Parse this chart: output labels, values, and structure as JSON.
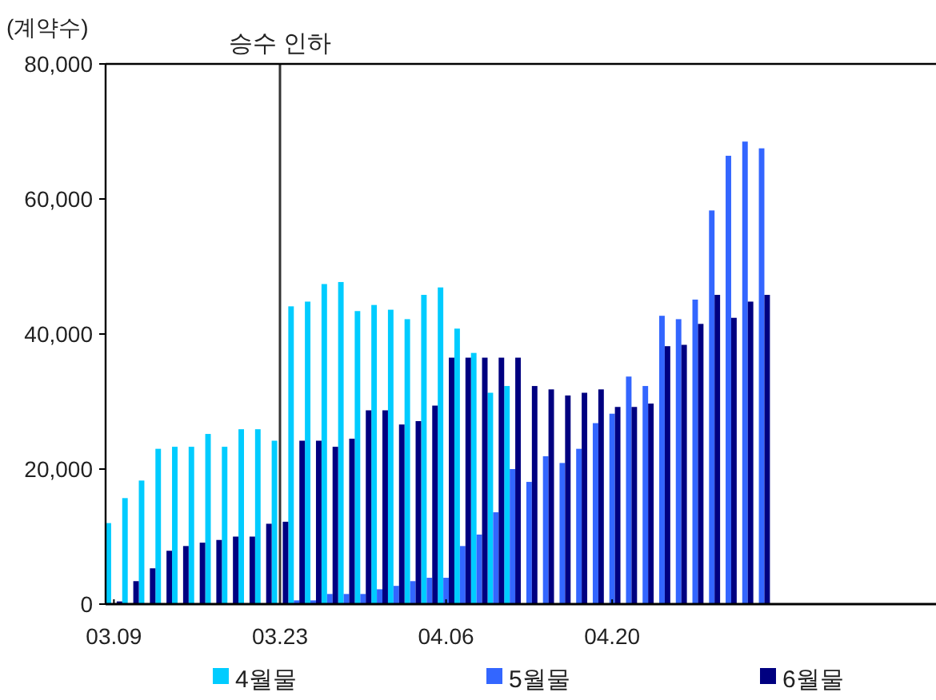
{
  "chart_data": {
    "type": "bar",
    "ylabel": "(계약수)",
    "categories": [
      "03.09",
      null,
      null,
      null,
      null,
      null,
      null,
      null,
      null,
      null,
      "03.23",
      null,
      null,
      null,
      null,
      null,
      null,
      null,
      null,
      null,
      "04.06",
      null,
      null,
      null,
      null,
      null,
      null,
      null,
      null,
      null,
      "04.20",
      null,
      null,
      null,
      null,
      null,
      null,
      null,
      null,
      null,
      null,
      null,
      null,
      null,
      null,
      null,
      null,
      null,
      null,
      null
    ],
    "series": [
      {
        "name": "4월물",
        "color": "#00ccff",
        "values": [
          12000,
          15700,
          18300,
          23000,
          23300,
          23300,
          25200,
          23300,
          25900,
          25900,
          24200,
          44100,
          44800,
          47400,
          47700,
          43400,
          44300,
          43600,
          42200,
          45800,
          46900,
          40800,
          37200,
          31300,
          32300,
          null,
          null,
          null,
          null,
          null,
          null,
          null,
          null,
          null,
          null,
          null,
          null,
          null,
          null,
          null,
          null,
          null,
          null,
          null,
          null,
          null,
          null,
          null,
          null,
          null
        ]
      },
      {
        "name": "5월물",
        "color": "#3366ff",
        "values": [
          null,
          null,
          null,
          null,
          null,
          null,
          null,
          null,
          null,
          null,
          null,
          550,
          550,
          1500,
          1500,
          1500,
          2200,
          2700,
          3400,
          3900,
          3900,
          8600,
          10300,
          13600,
          20000,
          18100,
          21900,
          20900,
          23000,
          26800,
          28200,
          33700,
          32300,
          42700,
          42200,
          45100,
          58300,
          66400,
          68500,
          67500,
          null,
          null,
          null,
          null,
          null,
          null,
          null,
          null,
          null,
          null
        ]
      },
      {
        "name": "6월물",
        "color": "#000080",
        "values": [
          400,
          3400,
          5300,
          7900,
          8600,
          9100,
          9500,
          10000,
          10000,
          11900,
          12200,
          24200,
          24200,
          23300,
          24500,
          28700,
          28700,
          26600,
          27100,
          29400,
          36500,
          36500,
          36500,
          36500,
          36500,
          32300,
          31800,
          30900,
          31300,
          31800,
          29200,
          29200,
          29700,
          38200,
          38400,
          41500,
          45800,
          42400,
          44800,
          45800,
          null,
          null,
          null,
          null,
          null,
          null,
          null,
          null,
          null,
          null
        ]
      }
    ],
    "ylim": [
      0,
      80000
    ],
    "yticks": [
      0,
      {
        "value": 20000,
        "label": "20,000"
      },
      {
        "value": 40000,
        "label": "40,000"
      },
      {
        "value": 60000,
        "label": "60,000"
      },
      {
        "value": 80000,
        "label": "80,000"
      }
    ],
    "ref_lines": [
      {
        "axis": "x",
        "value": "03.23",
        "label": "승수 인하",
        "color": "#333333"
      }
    ],
    "legend": "bottom",
    "grid": false
  }
}
